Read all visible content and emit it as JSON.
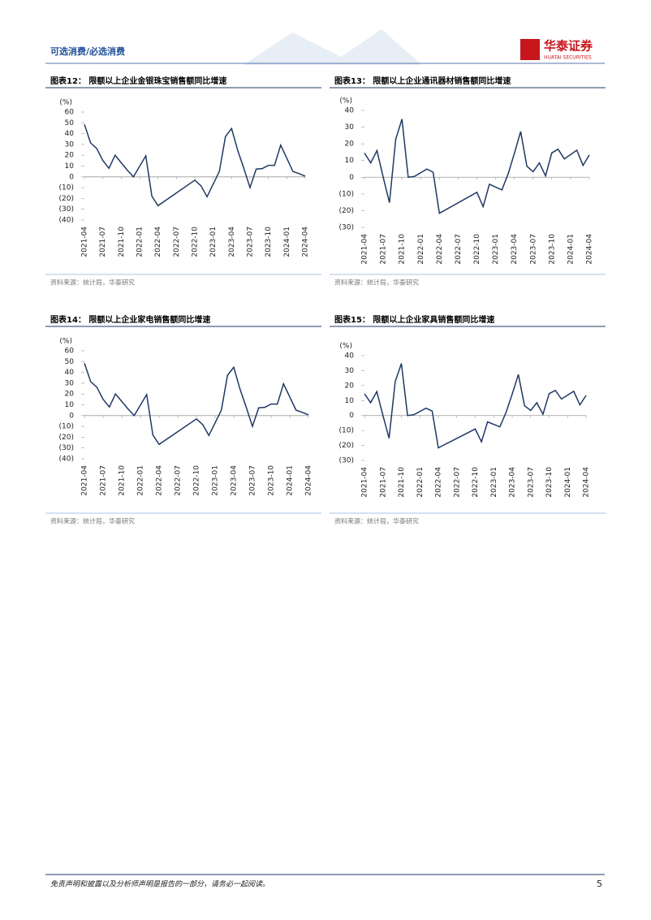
{
  "header": {
    "section": "可选消费/必选消费",
    "brand": "华泰证券",
    "brand_en": "HUATAI SECURITIES"
  },
  "chart_data": [
    {
      "type": "line",
      "title": "图表12：  限额以上企业金银珠宝销售额同比增速",
      "y_label": "(%)",
      "source": "资料来源：统计局，华泰研究",
      "color": "#1f3864",
      "x": [
        "2021-04",
        "2021-05",
        "2021-06",
        "2021-07",
        "2021-08",
        "2021-09",
        "2021-10",
        "2021-11",
        "2021-12",
        "2022-02",
        "2022-03",
        "2022-04",
        "2022-10",
        "2022-11",
        "2022-12",
        "2023-02",
        "2023-03",
        "2023-04",
        "2023-05",
        "2023-06",
        "2023-07",
        "2023-08",
        "2023-09",
        "2023-10",
        "2023-11",
        "2023-12",
        "2024-02",
        "2024-03",
        "2024-04"
      ],
      "values": [
        48.6,
        31.4,
        26.3,
        15.1,
        8,
        20.1,
        13.1,
        6.2,
        0,
        19.5,
        -17.9,
        -26.7,
        -3.1,
        -8.3,
        -18.4,
        5,
        37.4,
        44.7,
        24.4,
        7.8,
        -10,
        7.2,
        7.7,
        10.7,
        10.7,
        29.4,
        5,
        3,
        0.7
      ],
      "xlim": [
        "2021-04",
        "2024-04"
      ],
      "xticks": [
        "2021-04",
        "2021-07",
        "2021-10",
        "2022-01",
        "2022-04",
        "2022-07",
        "2022-10",
        "2023-01",
        "2023-04",
        "2023-07",
        "2023-10",
        "2024-01",
        "2024-04"
      ],
      "ylim": [
        -40,
        60
      ],
      "yticks": [
        60,
        50,
        40,
        30,
        20,
        10,
        0,
        {
          "value": -10,
          "label": "(10)"
        },
        {
          "value": -20,
          "label": "(20)"
        },
        {
          "value": -30,
          "label": "(30)"
        },
        {
          "value": -40,
          "label": "(40)"
        }
      ]
    },
    {
      "type": "line",
      "title": "图表13：  限额以上企业通讯器材销售额同比增速",
      "y_label": "(%)",
      "source": "资料来源：统计局，华泰研究",
      "color": "#1f3864",
      "x": [
        "2021-04",
        "2021-05",
        "2021-06",
        "2021-07",
        "2021-08",
        "2021-09",
        "2021-10",
        "2021-11",
        "2021-12",
        "2022-02",
        "2022-03",
        "2022-04",
        "2022-10",
        "2022-11",
        "2022-12",
        "2023-02",
        "2023-03",
        "2023-04",
        "2023-05",
        "2023-06",
        "2023-07",
        "2023-08",
        "2023-09",
        "2023-10",
        "2023-11",
        "2023-12",
        "2024-02",
        "2024-03",
        "2024-04"
      ],
      "values": [
        14.5,
        8.6,
        16,
        0,
        -15.2,
        22.7,
        34.8,
        0,
        0.5,
        4.9,
        3,
        -21.6,
        -9,
        -17.6,
        -4.2,
        -7.6,
        2,
        14.3,
        27.4,
        6.6,
        3.3,
        8.6,
        0.8,
        14.6,
        16.8,
        11,
        16.2,
        7.1,
        13.4
      ],
      "xlim": [
        "2021-04",
        "2024-04"
      ],
      "xticks": [
        "2021-04",
        "2021-07",
        "2021-10",
        "2022-01",
        "2022-04",
        "2022-07",
        "2022-10",
        "2023-01",
        "2023-04",
        "2023-07",
        "2023-10",
        "2024-01",
        "2024-04"
      ],
      "ylim": [
        -30,
        40
      ],
      "yticks": [
        40,
        30,
        20,
        10,
        0,
        {
          "value": -10,
          "label": "(10)"
        },
        {
          "value": -20,
          "label": "(20)"
        },
        {
          "value": -30,
          "label": "(30)"
        }
      ]
    },
    {
      "type": "line",
      "title": "图表14：  限额以上企业家电销售额同比增速",
      "y_label": "(%)",
      "source": "资料来源：统计局，华泰研究",
      "color": "#1f3864",
      "x": [
        "2021-04",
        "2021-05",
        "2021-06",
        "2021-07",
        "2021-08",
        "2021-09",
        "2021-10",
        "2021-11",
        "2021-12",
        "2022-02",
        "2022-03",
        "2022-04",
        "2022-10",
        "2022-11",
        "2022-12",
        "2023-02",
        "2023-03",
        "2023-04",
        "2023-05",
        "2023-06",
        "2023-07",
        "2023-08",
        "2023-09",
        "2023-10",
        "2023-11",
        "2023-12",
        "2024-02",
        "2024-03",
        "2024-04"
      ],
      "values": [
        48.6,
        31.4,
        26.3,
        15.1,
        8,
        20.1,
        13.1,
        6.2,
        0,
        19.5,
        -17.9,
        -26.7,
        -3.1,
        -8.3,
        -18.4,
        5,
        37.4,
        44.7,
        24.4,
        7.8,
        -10,
        7.2,
        7.7,
        10.7,
        10.7,
        29.4,
        5,
        3,
        0.7
      ],
      "xlim": [
        "2021-04",
        "2024-04"
      ],
      "xticks": [
        "2021-04",
        "2021-07",
        "2021-10",
        "2022-01",
        "2022-04",
        "2022-07",
        "2022-10",
        "2023-01",
        "2023-04",
        "2023-07",
        "2023-10",
        "2024-01",
        "2024-04"
      ],
      "ylim": [
        -40,
        60
      ],
      "yticks": [
        60,
        50,
        40,
        30,
        20,
        10,
        0,
        {
          "value": -10,
          "label": "(10)"
        },
        {
          "value": -20,
          "label": "(20)"
        },
        {
          "value": -30,
          "label": "(30)"
        },
        {
          "value": -40,
          "label": "(40)"
        }
      ]
    },
    {
      "type": "line",
      "title": "图表15：  限额以上企业家具销售额同比增速",
      "y_label": "(%)",
      "source": "资料来源：统计局，华泰研究",
      "color": "#1f3864",
      "x": [
        "2021-04",
        "2021-05",
        "2021-06",
        "2021-07",
        "2021-08",
        "2021-09",
        "2021-10",
        "2021-11",
        "2021-12",
        "2022-02",
        "2022-03",
        "2022-04",
        "2022-10",
        "2022-11",
        "2022-12",
        "2023-02",
        "2023-03",
        "2023-04",
        "2023-05",
        "2023-06",
        "2023-07",
        "2023-08",
        "2023-09",
        "2023-10",
        "2023-11",
        "2023-12",
        "2024-02",
        "2024-03",
        "2024-04"
      ],
      "values": [
        14.5,
        8.6,
        16,
        0,
        -15.2,
        22.7,
        34.8,
        0,
        0.5,
        4.9,
        3,
        -21.6,
        -9,
        -17.6,
        -4.2,
        -7.6,
        2,
        14.3,
        27.4,
        6.6,
        3.3,
        8.6,
        0.8,
        14.6,
        16.8,
        11,
        16.2,
        7.1,
        13.4
      ],
      "xlim": [
        "2021-04",
        "2024-04"
      ],
      "xticks": [
        "2021-04",
        "2021-07",
        "2021-10",
        "2022-01",
        "2022-04",
        "2022-07",
        "2022-10",
        "2023-01",
        "2023-04",
        "2023-07",
        "2023-10",
        "2024-01",
        "2024-04"
      ],
      "ylim": [
        -30,
        40
      ],
      "yticks": [
        40,
        30,
        20,
        10,
        0,
        {
          "value": -10,
          "label": "(10)"
        },
        {
          "value": -20,
          "label": "(20)"
        },
        {
          "value": -30,
          "label": "(30)"
        }
      ]
    }
  ],
  "footer": {
    "disclaimer": "免责声明和披露以及分析师声明是报告的一部分，请务必一起阅读。",
    "page": 5
  }
}
